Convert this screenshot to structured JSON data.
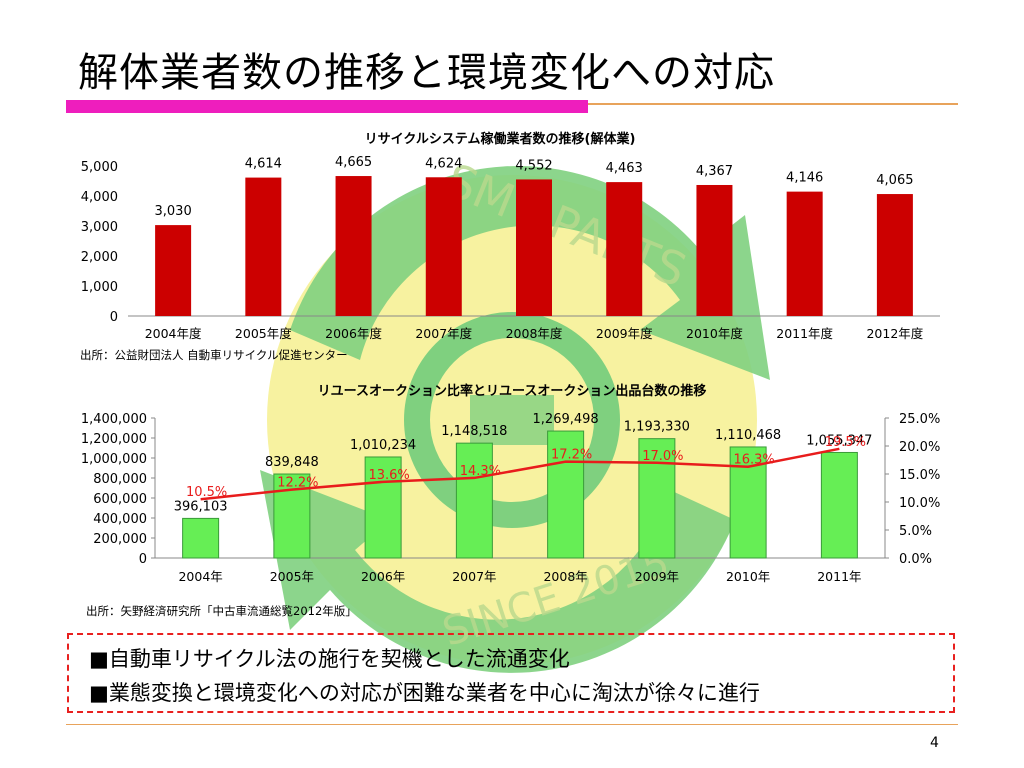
{
  "slide": {
    "title": "解体業者数の推移と環境変化への対応",
    "page_number": "4"
  },
  "watermark": {
    "text_top": "SMT PARTS",
    "text_bottom": "SINCE 2015",
    "colors": {
      "green": "#7fd07f",
      "yellow": "#f7f2a0"
    }
  },
  "chart_data": [
    {
      "type": "bar",
      "title": "リサイクルシステム稼働業者数の推移(解体業)",
      "categories": [
        "2004年度",
        "2005年度",
        "2006年度",
        "2007年度",
        "2008年度",
        "2009年度",
        "2010年度",
        "2011年度",
        "2012年度"
      ],
      "values": [
        3030,
        4614,
        4665,
        4624,
        4552,
        4463,
        4367,
        4146,
        4065
      ],
      "data_labels": [
        "3,030",
        "4,614",
        "4,665",
        "4,624",
        "4,552",
        "4,463",
        "4,367",
        "4,146",
        "4,065"
      ],
      "ylim": [
        0,
        5000
      ],
      "yticks": [
        "0",
        "1,000",
        "2,000",
        "3,000",
        "4,000",
        "5,000"
      ],
      "bar_color": "#cc0000",
      "grid": false,
      "source": "出所：公益財団法人 自動車リサイクル促進センター"
    },
    {
      "type": "bar",
      "title": "リユースオークション比率とリユースオークション出品台数の推移",
      "categories": [
        "2004年",
        "2005年",
        "2006年",
        "2007年",
        "2008年",
        "2009年",
        "2010年",
        "2011年"
      ],
      "series": [
        {
          "type": "bar",
          "values": [
            396103,
            839848,
            1010234,
            1148518,
            1269498,
            1193330,
            1110468,
            1055347
          ],
          "labels": [
            "396,103",
            "839,848",
            "1,010,234",
            "1,148,518",
            "1,269,498",
            "1,193,330",
            "1,110,468",
            "1,055,347"
          ],
          "axis": "left",
          "color": "#66ee55"
        },
        {
          "type": "line",
          "values": [
            10.5,
            12.2,
            13.6,
            14.3,
            17.2,
            17.0,
            16.3,
            19.5
          ],
          "labels": [
            "10.5%",
            "12.2%",
            "13.6%",
            "14.3%",
            "17.2%",
            "17.0%",
            "16.3%",
            "19.5%"
          ],
          "axis": "right",
          "color": "#e81c1c"
        }
      ],
      "ylim_left": [
        0,
        1400000
      ],
      "yticks_left": [
        "0",
        "200,000",
        "400,000",
        "600,000",
        "800,000",
        "1,000,000",
        "1,200,000",
        "1,400,000"
      ],
      "ylim_right": [
        0,
        25
      ],
      "yticks_right": [
        "0.0%",
        "5.0%",
        "10.0%",
        "15.0%",
        "20.0%",
        "25.0%"
      ],
      "grid": false,
      "source": "出所：矢野経済研究所「中古車流通総覧2012年版」"
    }
  ],
  "summary": {
    "line1": "■自動車リサイクル法の施行を契機とした流通変化",
    "line2": "■業態変換と環境変化への対応が困難な業者を中心に淘汰が徐々に進行",
    "border_color": "#e8201f"
  }
}
